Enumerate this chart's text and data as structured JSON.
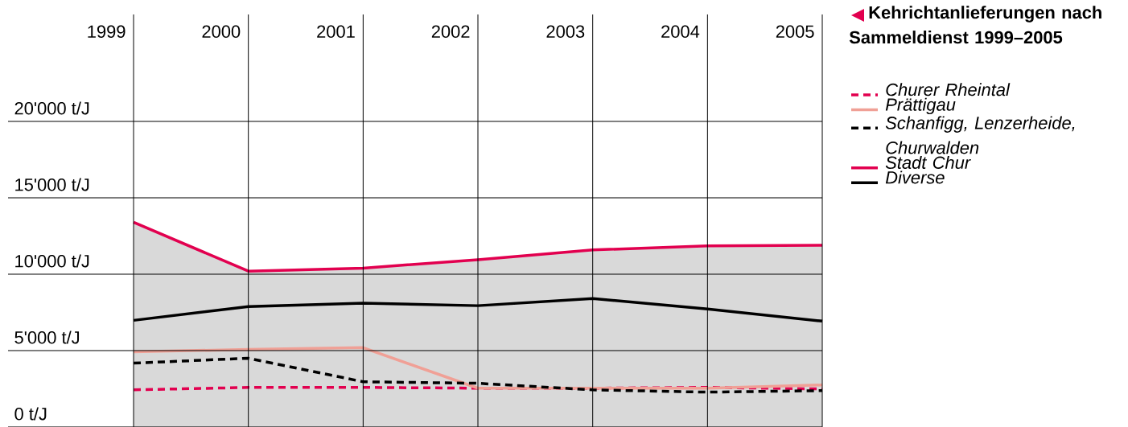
{
  "chart_data": {
    "type": "line",
    "legend_title": "Kehrichtanlieferungen nach Sammeldienst 1999–2005",
    "categories": [
      "1999",
      "2000",
      "2001",
      "2002",
      "2003",
      "2004",
      "2005"
    ],
    "series": [
      {
        "name": "Churer Rheintal",
        "color": "#e2004f",
        "line_style": "dashed",
        "values": [
          2430,
          2590,
          2590,
          2540,
          2540,
          2590,
          2490
        ]
      },
      {
        "name": "Prättigau",
        "color": "#f0a096",
        "line_style": "solid",
        "values": [
          4920,
          5080,
          5190,
          2540,
          2540,
          2540,
          2750
        ]
      },
      {
        "name": "Schanfigg, Lenzerheide, Churwalden",
        "color": "#000000",
        "line_style": "dashed",
        "values": [
          4180,
          4500,
          2960,
          2860,
          2430,
          2280,
          2380
        ]
      },
      {
        "name": "Stadt Chur",
        "type": "area",
        "color": "#e2004f",
        "line_style": "solid",
        "values": [
          13400,
          10200,
          10400,
          10950,
          11590,
          11850,
          11900
        ]
      },
      {
        "name": "Diverse",
        "color": "#000000",
        "line_style": "solid",
        "values": [
          6980,
          7880,
          8100,
          7940,
          8410,
          7720,
          6930
        ]
      }
    ],
    "ylim": [
      0,
      27000
    ],
    "yticks": [
      {
        "value": 0,
        "label": "0 t/J"
      },
      {
        "value": 5000,
        "label": "5'000 t/J"
      },
      {
        "value": 10000,
        "label": "10'000 t/J"
      },
      {
        "value": 15000,
        "label": "15'000 t/J"
      },
      {
        "value": 20000,
        "label": "20'000 t/J"
      }
    ],
    "grid": true,
    "legend": "right",
    "marker": "none"
  }
}
